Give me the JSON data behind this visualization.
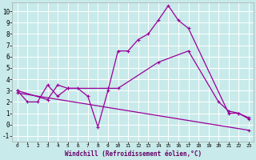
{
  "xlabel": "Windchill (Refroidissement éolien,°C)",
  "background_color": "#c8eaea",
  "grid_color": "#b0d8d8",
  "line_color": "#990099",
  "xlim": [
    -0.5,
    23.5
  ],
  "ylim": [
    -1.5,
    10.8
  ],
  "yticks": [
    -1,
    0,
    1,
    2,
    3,
    4,
    5,
    6,
    7,
    8,
    9,
    10
  ],
  "xticks": [
    0,
    1,
    2,
    3,
    4,
    5,
    6,
    7,
    8,
    9,
    10,
    11,
    12,
    13,
    14,
    15,
    16,
    17,
    18,
    19,
    20,
    21,
    22,
    23
  ],
  "curve1_x": [
    0,
    1,
    2,
    3,
    4,
    5,
    6,
    7,
    8,
    9,
    10,
    11,
    12,
    13,
    14,
    15,
    16,
    17,
    21,
    22,
    23
  ],
  "curve1_y": [
    3.0,
    2.0,
    2.0,
    3.5,
    2.5,
    3.2,
    3.2,
    2.5,
    -0.2,
    3.0,
    6.5,
    6.5,
    7.5,
    8.0,
    9.2,
    10.5,
    9.2,
    8.5,
    1.0,
    1.0,
    0.5
  ],
  "curve2_x": [
    0,
    3,
    4,
    5,
    9,
    10,
    14,
    17,
    20,
    21,
    22,
    23
  ],
  "curve2_y": [
    3.0,
    2.2,
    3.5,
    3.2,
    3.2,
    3.2,
    5.5,
    6.5,
    2.0,
    1.2,
    1.0,
    0.6
  ],
  "curve3_x": [
    0,
    23
  ],
  "curve3_y": [
    2.8,
    -0.5
  ],
  "xlabel_fontsize": 5.5,
  "tick_fontsize_x": 4.5,
  "tick_fontsize_y": 5.5
}
